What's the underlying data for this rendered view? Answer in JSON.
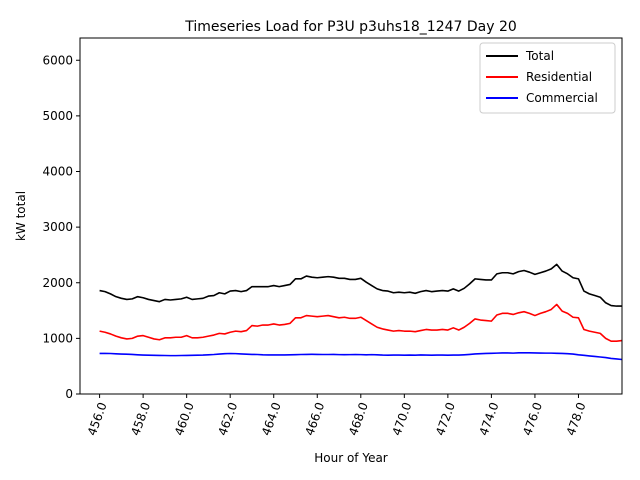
{
  "chart_data": {
    "type": "line",
    "title": "Timeseries Load for P3U p3uhs18_1247  Day 20",
    "xlabel": "Hour of Year",
    "ylabel": "kW total",
    "xlim": [
      455.1,
      480.0
    ],
    "ylim": [
      0,
      6400
    ],
    "x_ticks": [
      456.0,
      458.0,
      460.0,
      462.0,
      464.0,
      466.0,
      468.0,
      470.0,
      472.0,
      474.0,
      476.0,
      478.0
    ],
    "x_tick_labels": [
      "456.0",
      "458.0",
      "460.0",
      "462.0",
      "464.0",
      "466.0",
      "468.0",
      "470.0",
      "472.0",
      "474.0",
      "476.0",
      "478.0"
    ],
    "y_ticks": [
      0,
      1000,
      2000,
      3000,
      4000,
      5000,
      6000
    ],
    "y_tick_labels": [
      "0",
      "1000",
      "2000",
      "3000",
      "4000",
      "5000",
      "6000"
    ],
    "legend_position": "top-right",
    "grid": false,
    "x_start": 456.0,
    "x_step": 0.25,
    "series": [
      {
        "name": "Total",
        "color": "#000000",
        "values": [
          1860,
          1840,
          1800,
          1750,
          1720,
          1700,
          1710,
          1750,
          1730,
          1700,
          1680,
          1660,
          1700,
          1690,
          1700,
          1710,
          1740,
          1700,
          1710,
          1720,
          1760,
          1770,
          1820,
          1800,
          1850,
          1860,
          1840,
          1860,
          1930,
          1930,
          1930,
          1930,
          1950,
          1930,
          1950,
          1970,
          2070,
          2070,
          2120,
          2100,
          2090,
          2100,
          2110,
          2100,
          2080,
          2080,
          2060,
          2060,
          2080,
          2010,
          1950,
          1890,
          1860,
          1850,
          1820,
          1830,
          1820,
          1830,
          1810,
          1840,
          1860,
          1840,
          1850,
          1860,
          1850,
          1890,
          1850,
          1900,
          1980,
          2070,
          2060,
          2050,
          2050,
          2160,
          2180,
          2180,
          2160,
          2200,
          2220,
          2190,
          2150,
          2180,
          2210,
          2250,
          2330,
          2210,
          2160,
          2090,
          2070,
          1850,
          1800,
          1770,
          1740,
          1640,
          1590,
          1580,
          1580
        ]
      },
      {
        "name": "Residential",
        "color": "#ff0000",
        "values": [
          1130,
          1110,
          1080,
          1040,
          1010,
          990,
          1000,
          1040,
          1050,
          1020,
          990,
          975,
          1010,
          1010,
          1020,
          1020,
          1050,
          1010,
          1010,
          1020,
          1040,
          1060,
          1090,
          1080,
          1110,
          1130,
          1120,
          1140,
          1230,
          1220,
          1240,
          1240,
          1260,
          1240,
          1250,
          1270,
          1370,
          1370,
          1410,
          1400,
          1390,
          1400,
          1410,
          1390,
          1370,
          1380,
          1360,
          1360,
          1380,
          1320,
          1260,
          1200,
          1170,
          1150,
          1130,
          1140,
          1130,
          1130,
          1120,
          1140,
          1160,
          1150,
          1150,
          1160,
          1150,
          1190,
          1150,
          1200,
          1270,
          1350,
          1330,
          1320,
          1310,
          1420,
          1450,
          1450,
          1430,
          1460,
          1480,
          1450,
          1410,
          1450,
          1480,
          1520,
          1610,
          1490,
          1450,
          1380,
          1370,
          1160,
          1130,
          1110,
          1090,
          1000,
          950,
          950,
          960
        ]
      },
      {
        "name": "Commercial",
        "color": "#0000ff",
        "values": [
          730,
          730,
          728,
          722,
          718,
          715,
          712,
          705,
          700,
          697,
          695,
          693,
          692,
          690,
          690,
          692,
          693,
          695,
          698,
          700,
          705,
          710,
          718,
          725,
          728,
          726,
          720,
          715,
          712,
          710,
          705,
          703,
          702,
          702,
          703,
          705,
          707,
          710,
          712,
          713,
          712,
          710,
          710,
          712,
          708,
          706,
          708,
          710,
          708,
          705,
          708,
          705,
          700,
          698,
          700,
          700,
          698,
          700,
          698,
          702,
          700,
          698,
          700,
          700,
          698,
          700,
          700,
          705,
          712,
          720,
          725,
          730,
          732,
          735,
          738,
          738,
          735,
          740,
          740,
          740,
          738,
          736,
          735,
          735,
          732,
          730,
          725,
          718,
          705,
          695,
          685,
          675,
          665,
          655,
          640,
          630,
          620
        ]
      }
    ]
  }
}
